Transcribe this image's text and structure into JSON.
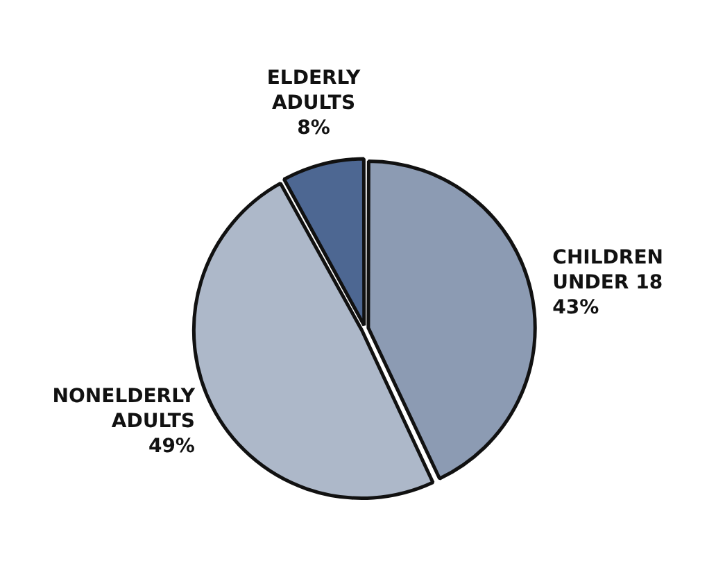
{
  "chart_data": {
    "type": "pie",
    "categories": [
      "CHILDREN UNDER 18",
      "NONELDERLY ADULTS",
      "ELDERLY ADULTS"
    ],
    "values": [
      43,
      49,
      8
    ],
    "value_labels": [
      "43%",
      "49%",
      "8%"
    ],
    "colors": [
      "#8c9bb3",
      "#adb8c9",
      "#4d6792"
    ]
  }
}
